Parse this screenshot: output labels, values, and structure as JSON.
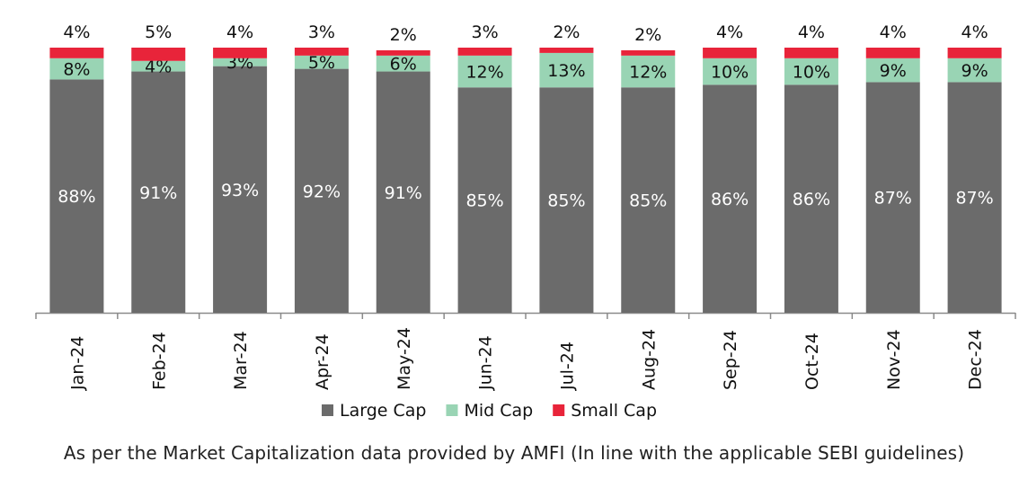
{
  "chart_data": {
    "type": "bar",
    "stacked": true,
    "percent": true,
    "categories": [
      "Jan-24",
      "Feb-24",
      "Mar-24",
      "Apr-24",
      "May-24",
      "Jun-24",
      "Jul-24",
      "Aug-24",
      "Sep-24",
      "Oct-24",
      "Nov-24",
      "Dec-24"
    ],
    "series": [
      {
        "name": "Large Cap",
        "color": "#6b6b6b",
        "values": [
          88,
          91,
          93,
          92,
          91,
          85,
          85,
          85,
          86,
          86,
          87,
          87
        ]
      },
      {
        "name": "Mid Cap",
        "color": "#99d4b4",
        "values": [
          8,
          4,
          3,
          5,
          6,
          12,
          13,
          12,
          10,
          10,
          9,
          9
        ]
      },
      {
        "name": "Small Cap",
        "color": "#e8243a",
        "values": [
          4,
          5,
          4,
          3,
          2,
          3,
          2,
          2,
          4,
          4,
          4,
          4
        ]
      }
    ],
    "value_suffix": "%",
    "ylim": [
      0,
      100
    ],
    "legend_position": "bottom",
    "grid": false,
    "title": "",
    "xlabel": "",
    "ylabel": ""
  },
  "footnote": "As per the Market Capitalization data provided by AMFI (In line with the applicable SEBI guidelines)"
}
